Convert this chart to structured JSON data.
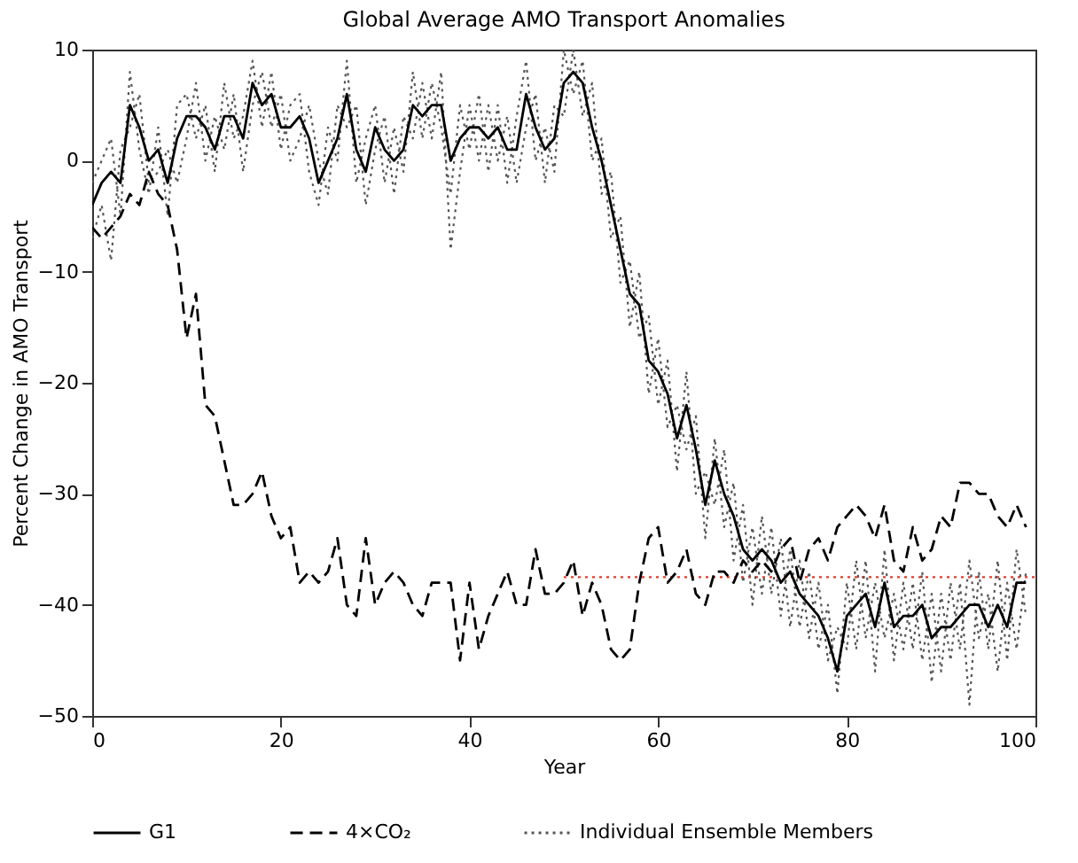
{
  "chart_data": {
    "type": "line",
    "title": "Global Average AMO Transport Anomalies",
    "xlabel": "Year",
    "ylabel": "Percent Change in AMO Transport",
    "x": [
      0,
      1,
      2,
      3,
      4,
      5,
      6,
      7,
      8,
      9,
      10,
      11,
      12,
      13,
      14,
      15,
      16,
      17,
      18,
      19,
      20,
      21,
      22,
      23,
      24,
      25,
      26,
      27,
      28,
      29,
      30,
      31,
      32,
      33,
      34,
      35,
      36,
      37,
      38,
      39,
      40,
      41,
      42,
      43,
      44,
      45,
      46,
      47,
      48,
      49,
      50,
      51,
      52,
      53,
      54,
      55,
      56,
      57,
      58,
      59,
      60,
      61,
      62,
      63,
      64,
      65,
      66,
      67,
      68,
      69,
      70,
      71,
      72,
      73,
      74,
      75,
      76,
      77,
      78,
      79,
      80,
      81,
      82,
      83,
      84,
      85,
      86,
      87,
      88,
      89,
      90,
      91,
      92,
      93,
      94,
      95,
      96,
      97,
      98,
      99
    ],
    "series": [
      {
        "name": "G1",
        "color": "#000000",
        "line_style": "solid",
        "values": [
          -4,
          -2,
          -1,
          -2,
          5,
          3,
          0,
          1,
          -2,
          2,
          4,
          4,
          3,
          1,
          4,
          4,
          2,
          7,
          5,
          6,
          3,
          3,
          4,
          2,
          -2,
          0,
          2,
          6,
          1,
          -1,
          3,
          1,
          0,
          1,
          5,
          4,
          5,
          5,
          0,
          2,
          3,
          3,
          2,
          3,
          1,
          1,
          6,
          3,
          1,
          2,
          7,
          8,
          7,
          3,
          0,
          -4,
          -8,
          -12,
          -13,
          -18,
          -19,
          -21,
          -25,
          -22,
          -26,
          -31,
          -27,
          -30,
          -32,
          -35,
          -36,
          -35,
          -36,
          -38,
          -37,
          -39,
          -40,
          -41,
          -43,
          -46,
          -41,
          -40,
          -39,
          -42,
          -38,
          -42,
          -41,
          -41,
          -40,
          -43,
          -42,
          -42,
          -41,
          -40,
          -40,
          -42,
          -40,
          -42,
          -38,
          -38
        ]
      },
      {
        "name": "4×CO₂",
        "color": "#000000",
        "line_style": "dashed",
        "values": [
          -6,
          -7,
          -6,
          -5,
          -3,
          -4,
          -1,
          -3,
          -4,
          -8,
          -16,
          -12,
          -22,
          -23,
          -27,
          -31,
          -31,
          -30,
          -28,
          -32,
          -34,
          -33,
          -38,
          -37,
          -38,
          -37,
          -34,
          -40,
          -41,
          -34,
          -40,
          -38,
          -37,
          -38,
          -40,
          -41,
          -38,
          -38,
          -38,
          -45,
          -38,
          -44,
          -41,
          -39,
          -37,
          -40,
          -40,
          -35,
          -39,
          -39,
          -38,
          -36,
          -41,
          -38,
          -40,
          -44,
          -45,
          -44,
          -38,
          -34,
          -33,
          -38,
          -37,
          -35,
          -39,
          -40,
          -37,
          -37,
          -38,
          -36,
          -37,
          -36,
          -37,
          -35,
          -34,
          -38,
          -35,
          -34,
          -36,
          -33,
          -32,
          -31,
          -32,
          -34,
          -31,
          -36,
          -37,
          -33,
          -36,
          -35,
          -32,
          -33,
          -29,
          -29,
          -30,
          -30,
          -32,
          -33,
          -31,
          -33
        ]
      },
      {
        "name": "Individual Ensemble Members",
        "color": "#555555",
        "line_style": "dotted",
        "values": [
          -2,
          0,
          2,
          -5,
          8,
          1,
          -3,
          3,
          -5,
          5,
          6,
          2,
          5,
          -1,
          7,
          2,
          4,
          9,
          3,
          8,
          1,
          5,
          6,
          -1,
          -4,
          3,
          0,
          9,
          -2,
          2,
          5,
          -2,
          3,
          -1,
          8,
          2,
          7,
          3,
          -3,
          5,
          1,
          6,
          -1,
          5,
          -2,
          4,
          9,
          0,
          3,
          -1,
          10,
          6,
          9,
          0,
          2,
          -7,
          -5,
          -15,
          -10,
          -21,
          -16,
          -24,
          -22,
          -26,
          -23,
          -34,
          -25,
          -33,
          -29,
          -38,
          -33,
          -39,
          -33,
          -41,
          -35,
          -42,
          -37,
          -44,
          -40,
          -48,
          -38,
          -44,
          -36,
          -46,
          -35,
          -45,
          -38,
          -44,
          -37,
          -47,
          -39,
          -45,
          -38,
          -49,
          -37,
          -44,
          -36,
          -45,
          -35,
          -41
        ]
      },
      {
        "color": "#555555",
        "line_style": "dotted",
        "values": [
          -7,
          -4,
          -9,
          1,
          3,
          6,
          -2,
          -1,
          1,
          -2,
          2,
          7,
          0,
          4,
          1,
          6,
          -1,
          5,
          8,
          3,
          6,
          0,
          2,
          5,
          0,
          -3,
          5,
          3,
          5,
          -4,
          1,
          4,
          -3,
          4,
          2,
          7,
          2,
          8,
          -8,
          -1,
          5,
          0,
          5,
          0,
          4,
          -2,
          3,
          6,
          -2,
          5,
          4,
          10,
          4,
          7,
          -3,
          -1,
          -11,
          -9,
          -16,
          -14,
          -22,
          -18,
          -28,
          -19,
          -30,
          -28,
          -31,
          -26,
          -36,
          -31,
          -40,
          -32,
          -39,
          -34,
          -42,
          -36,
          -43,
          -38,
          -45,
          -42,
          -44,
          -36,
          -43,
          -38,
          -43,
          -39,
          -44,
          -38,
          -45,
          -39,
          -46,
          -38,
          -44,
          -36,
          -43,
          -39,
          -46,
          -38,
          -44,
          -37
        ]
      },
      {
        "color": "#e8392b",
        "line_style": "dotted",
        "x": [
          50,
          100
        ],
        "values": [
          -37.5,
          -37.5
        ]
      }
    ],
    "xlim": [
      0,
      100
    ],
    "ylim": [
      -50,
      10
    ],
    "xticks": [
      0,
      20,
      40,
      60,
      80,
      100
    ],
    "yticks": [
      -50,
      -40,
      -30,
      -20,
      -10,
      0,
      10
    ],
    "grid": false,
    "legend": "bottom",
    "marker": "none"
  }
}
